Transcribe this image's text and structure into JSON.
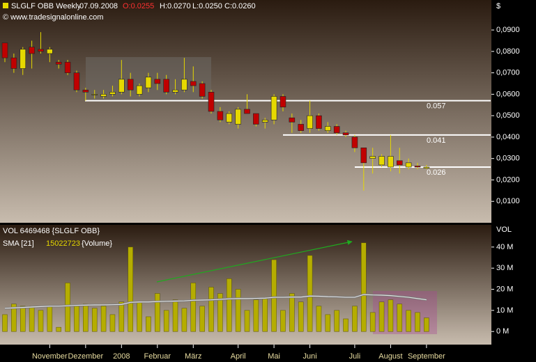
{
  "header": {
    "symbol": "SLGLF OBB Weekly",
    "date": "07.09.2008",
    "open": "O:0.0255",
    "high": "H:0.0270",
    "low": "L:0.0250",
    "close": "C:0.0260",
    "copyright": "© www.tradesignalonline.com",
    "currency": "$"
  },
  "chart_data": [
    {
      "type": "candlestick",
      "categories": [
        null,
        null,
        null,
        null,
        null,
        "November",
        null,
        null,
        null,
        "Dezember",
        null,
        null,
        null,
        "2008",
        null,
        null,
        null,
        "Februar",
        null,
        null,
        null,
        "März",
        null,
        null,
        null,
        null,
        "April",
        null,
        null,
        null,
        "Mai",
        null,
        null,
        null,
        "Juni",
        null,
        null,
        null,
        null,
        "Juli",
        null,
        null,
        null,
        "August",
        null,
        null,
        null,
        "September"
      ],
      "open": [
        0.084,
        0.077,
        0.072,
        0.082,
        0.081,
        0.079,
        0.075,
        0.075,
        0.07,
        0.062,
        0.06,
        0.059,
        0.06,
        0.061,
        0.067,
        0.06,
        0.063,
        0.067,
        0.067,
        0.061,
        0.062,
        0.066,
        0.065,
        0.061,
        0.052,
        0.047,
        0.046,
        0.053,
        0.051,
        0.047,
        0.048,
        0.059,
        0.049,
        0.046,
        0.044,
        0.05,
        0.043,
        0.045,
        0.042,
        0.04,
        0.035,
        0.03,
        0.027,
        0.026,
        0.029,
        0.026,
        0.0265,
        0.0255
      ],
      "high": [
        0.084,
        0.079,
        0.082,
        0.085,
        0.089,
        0.082,
        0.076,
        0.076,
        0.071,
        0.063,
        0.062,
        0.062,
        0.064,
        0.076,
        0.07,
        0.065,
        0.07,
        0.07,
        0.069,
        0.067,
        0.077,
        0.073,
        0.066,
        0.062,
        0.054,
        0.052,
        0.054,
        0.06,
        0.051,
        0.049,
        0.06,
        0.06,
        0.051,
        0.048,
        0.057,
        0.051,
        0.047,
        0.046,
        0.043,
        0.041,
        0.035,
        0.035,
        0.032,
        0.041,
        0.035,
        0.03,
        0.028,
        0.027
      ],
      "low": [
        0.075,
        0.07,
        0.069,
        0.072,
        0.079,
        0.075,
        0.072,
        0.069,
        0.061,
        0.057,
        0.058,
        0.058,
        0.059,
        0.06,
        0.059,
        0.059,
        0.061,
        0.062,
        0.06,
        0.06,
        0.061,
        0.061,
        0.058,
        0.051,
        0.047,
        0.046,
        0.044,
        0.051,
        0.045,
        0.044,
        0.046,
        0.052,
        0.042,
        0.042,
        0.042,
        0.043,
        0.042,
        0.041,
        0.04,
        0.033,
        0.015,
        0.023,
        0.026,
        0.024,
        0.023,
        0.025,
        0.025,
        0.025
      ],
      "close": [
        0.077,
        0.072,
        0.081,
        0.079,
        0.08,
        0.081,
        0.074,
        0.07,
        0.062,
        0.061,
        0.06,
        0.06,
        0.061,
        0.067,
        0.062,
        0.064,
        0.068,
        0.065,
        0.061,
        0.062,
        0.067,
        0.064,
        0.059,
        0.052,
        0.048,
        0.051,
        0.053,
        0.051,
        0.046,
        0.048,
        0.059,
        0.054,
        0.047,
        0.043,
        0.05,
        0.044,
        0.045,
        0.042,
        0.041,
        0.035,
        0.028,
        0.031,
        0.031,
        0.031,
        0.027,
        0.028,
        0.026,
        0.026
      ],
      "up_color": "#e6d800",
      "down_color": "#c00000",
      "levels": [
        0.057,
        0.041,
        0.026
      ],
      "ylim": [
        0,
        0.104
      ],
      "yticks": [
        {
          "value": 0.01,
          "label": "0,0100"
        },
        {
          "value": 0.02,
          "label": "0,0200"
        },
        {
          "value": 0.03,
          "label": "0,0300"
        },
        {
          "value": 0.04,
          "label": "0,0400"
        },
        {
          "value": 0.05,
          "label": "0,0500"
        },
        {
          "value": 0.06,
          "label": "0,0600"
        },
        {
          "value": 0.07,
          "label": "0,0700"
        },
        {
          "value": 0.08,
          "label": "0,0800"
        },
        {
          "value": 0.09,
          "label": "0,0900"
        }
      ]
    },
    {
      "type": "bar",
      "y_label": "VOL",
      "series": [
        {
          "name": "VOL 6469468 {SLGLF OBB}",
          "color": "#b5ad00",
          "values": [
            8,
            13,
            12,
            12,
            10,
            12,
            2,
            23,
            12,
            13,
            11,
            12,
            8,
            14,
            40,
            14,
            7,
            18,
            10,
            15,
            11,
            23,
            12,
            21,
            18,
            25,
            20,
            10,
            15,
            16,
            34,
            10,
            18,
            14,
            36,
            12,
            8,
            10,
            6,
            12,
            42,
            9,
            14,
            15,
            13,
            10,
            9,
            6.47
          ]
        },
        {
          "name": "SMA [21]",
          "last_label": "15022723",
          "source": "{Volume}",
          "type": "line",
          "color": "#e0e0e0",
          "values": [
            11,
            11.2,
            11.4,
            11.6,
            11.8,
            12,
            12,
            12.2,
            12.4,
            12.5,
            12.6,
            12.6,
            12.7,
            12.8,
            13.8,
            14,
            14,
            14.2,
            14.3,
            14.4,
            14.5,
            14.8,
            14.9,
            15,
            15.2,
            15.5,
            15.6,
            15.6,
            15.7,
            15.8,
            16.2,
            16.2,
            16.3,
            16.3,
            16.8,
            16.7,
            16.5,
            16.4,
            16.2,
            16.2,
            17.5,
            17.3,
            17.2,
            17,
            16.6,
            16.2,
            15.6,
            15.02
          ]
        }
      ],
      "ylim": [
        -6.2,
        50.5
      ],
      "yticks": [
        {
          "value": 0,
          "label": "0 M"
        },
        {
          "value": 10,
          "label": "10 M"
        },
        {
          "value": 20,
          "label": "20 M"
        },
        {
          "value": 30,
          "label": "30 M"
        },
        {
          "value": 40,
          "label": "40 M"
        }
      ]
    }
  ]
}
